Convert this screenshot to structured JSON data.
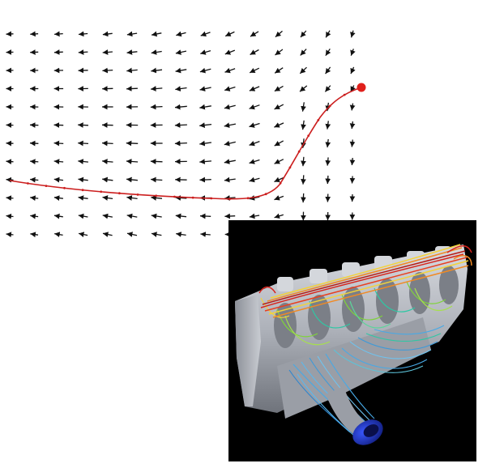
{
  "vector_field": {
    "arrow_color": "#111111",
    "trajectory_color": "#cc1f1f",
    "start_marker_color": "#e0201c",
    "columns": 15,
    "rows": 12
  },
  "render": {
    "background": "#000000",
    "block_color": "#b9bcc3",
    "shadow_color": "#6f737b",
    "streamline_colors": [
      "#d7261e",
      "#f08a24",
      "#f3d23a",
      "#7fd23c",
      "#2fc7a4",
      "#47a9e6",
      "#2d5fd6"
    ],
    "inlet_color": "#2b3fd0"
  }
}
